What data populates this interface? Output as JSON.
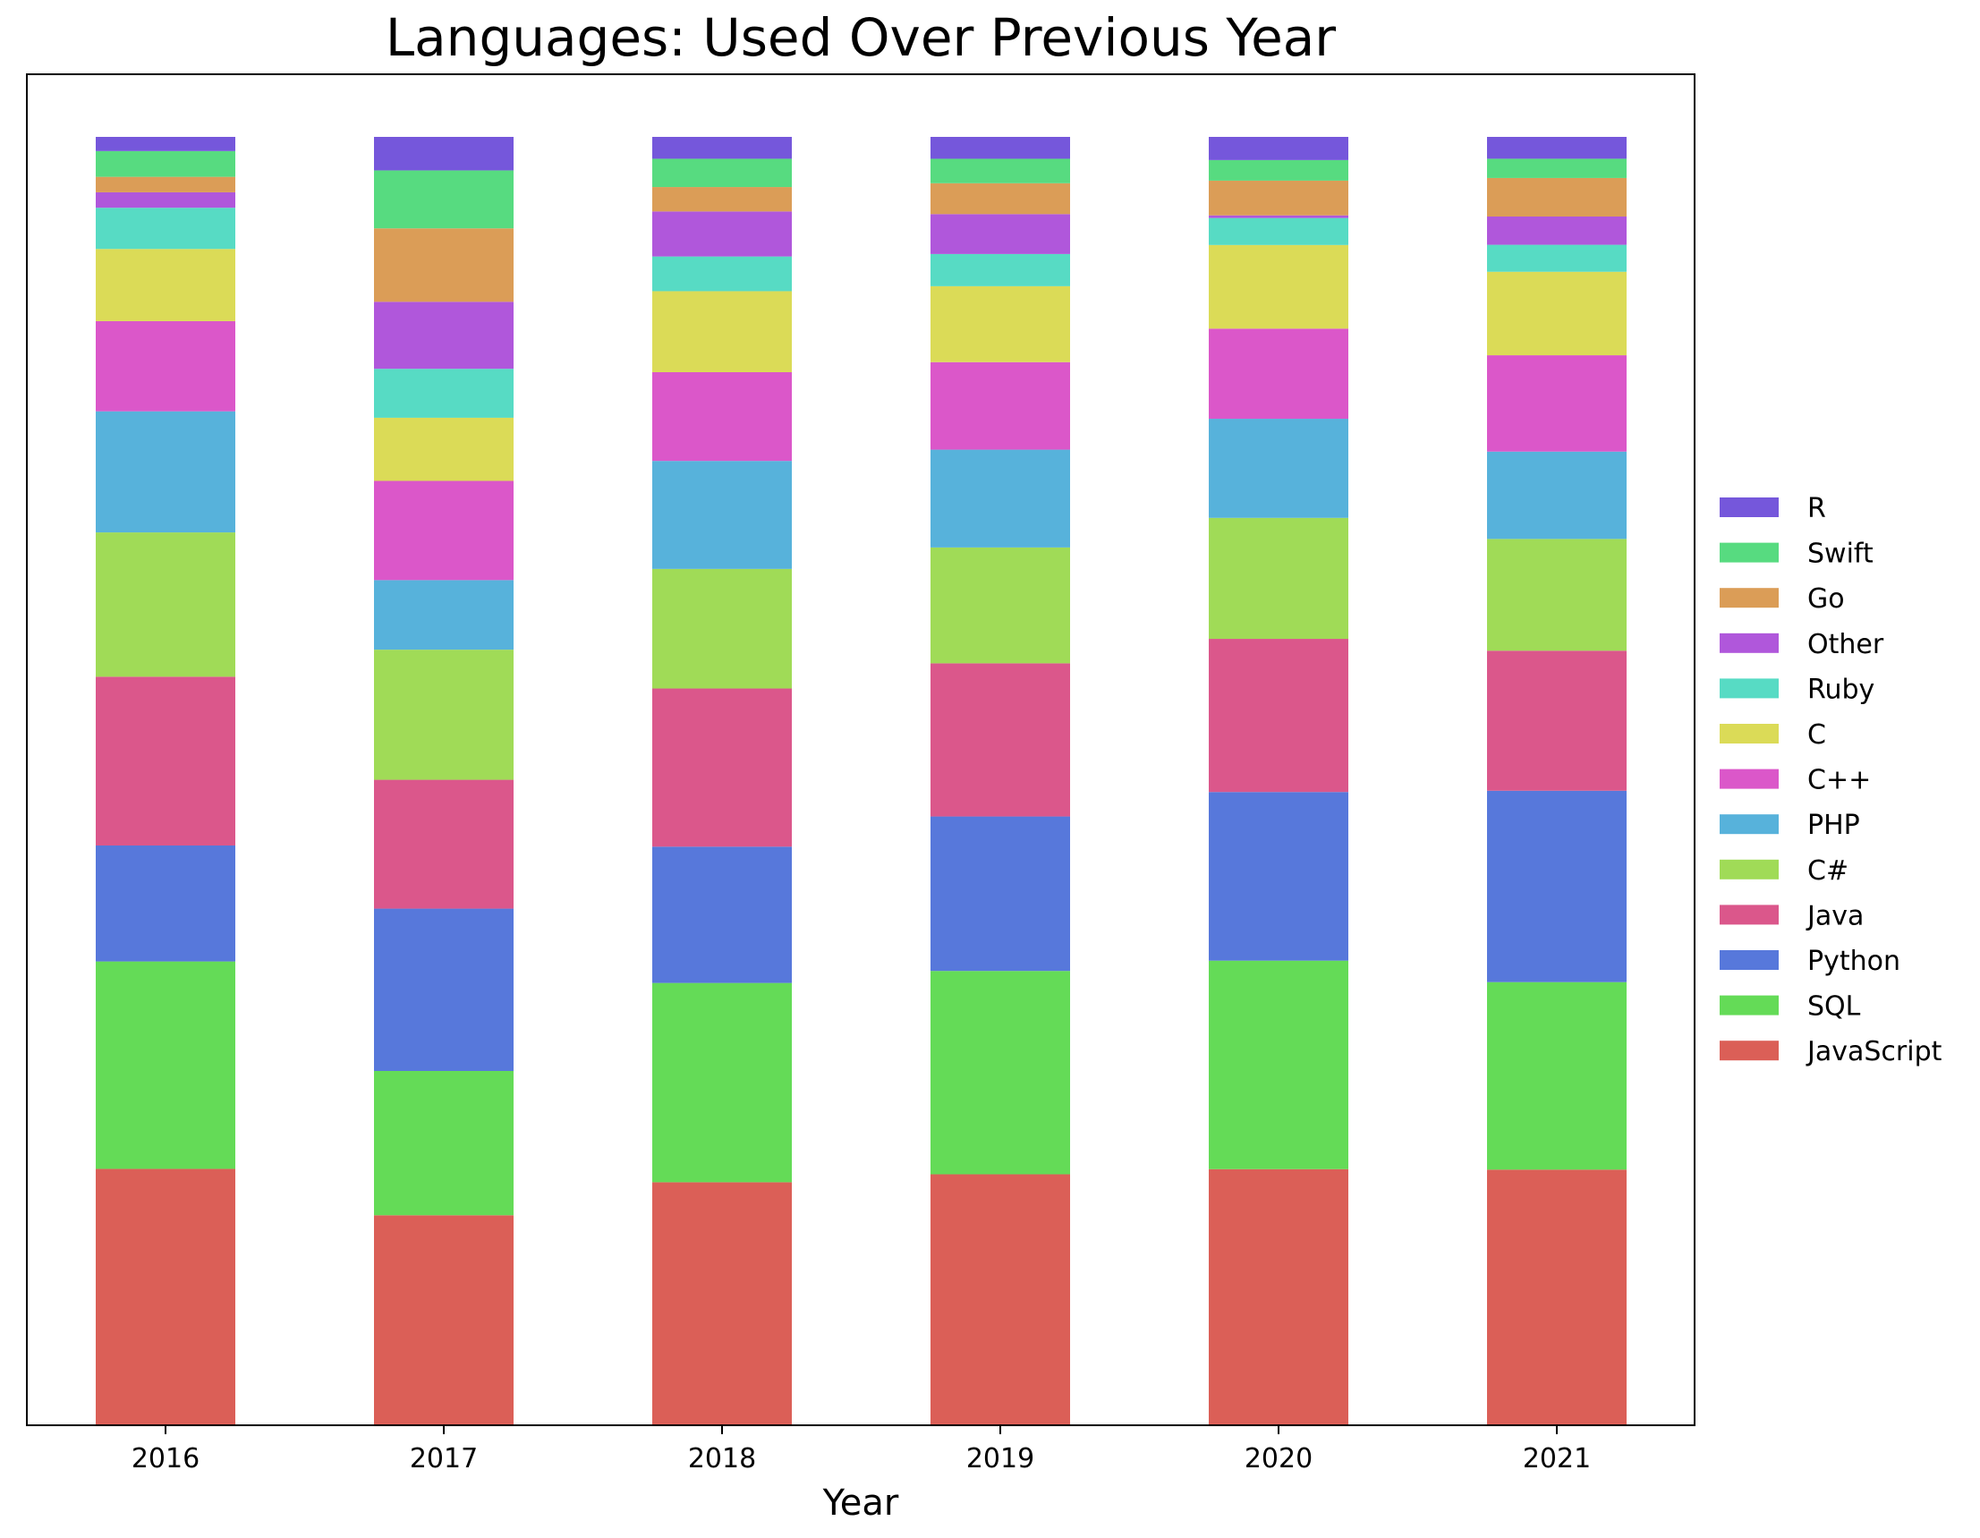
{
  "chart_data": {
    "type": "bar",
    "stacked": true,
    "normalized": true,
    "title": "Languages: Used Over Previous Year",
    "xlabel": "Year",
    "ylabel": "",
    "ylim": [
      0,
      1
    ],
    "yaxis_visible": false,
    "grid": false,
    "legend_placement": "right-outside",
    "categories": [
      "2016",
      "2017",
      "2018",
      "2019",
      "2020",
      "2021"
    ],
    "series": [
      {
        "name": "JavaScript",
        "color": "#db5f57",
        "values": [
          0.199,
          0.163,
          0.189,
          0.195,
          0.199,
          0.199
        ]
      },
      {
        "name": "SQL",
        "color": "#64db57",
        "values": [
          0.161,
          0.112,
          0.155,
          0.158,
          0.162,
          0.146
        ]
      },
      {
        "name": "Python",
        "color": "#5778db",
        "values": [
          0.09,
          0.126,
          0.106,
          0.12,
          0.131,
          0.149
        ]
      },
      {
        "name": "Java",
        "color": "#db578b",
        "values": [
          0.131,
          0.1,
          0.123,
          0.119,
          0.119,
          0.109
        ]
      },
      {
        "name": "C#",
        "color": "#a0db57",
        "values": [
          0.112,
          0.101,
          0.093,
          0.09,
          0.094,
          0.087
        ]
      },
      {
        "name": "PHP",
        "color": "#57b2db",
        "values": [
          0.094,
          0.054,
          0.084,
          0.076,
          0.077,
          0.068
        ]
      },
      {
        "name": "C++",
        "color": "#db57c9",
        "values": [
          0.07,
          0.077,
          0.069,
          0.068,
          0.07,
          0.075
        ]
      },
      {
        "name": "C",
        "color": "#dbdb57",
        "values": [
          0.056,
          0.049,
          0.063,
          0.059,
          0.065,
          0.065
        ]
      },
      {
        "name": "Ruby",
        "color": "#57dbc4",
        "values": [
          0.032,
          0.038,
          0.027,
          0.025,
          0.021,
          0.021
        ]
      },
      {
        "name": "Other",
        "color": "#b057db",
        "values": [
          0.012,
          0.052,
          0.035,
          0.031,
          0.002,
          0.022
        ]
      },
      {
        "name": "Go",
        "color": "#db9d57",
        "values": [
          0.012,
          0.057,
          0.019,
          0.024,
          0.027,
          0.03
        ]
      },
      {
        "name": "Swift",
        "color": "#57db80",
        "values": [
          0.02,
          0.045,
          0.022,
          0.019,
          0.016,
          0.015
        ]
      },
      {
        "name": "R",
        "color": "#7557db",
        "values": [
          0.011,
          0.026,
          0.017,
          0.017,
          0.018,
          0.017
        ]
      }
    ]
  }
}
